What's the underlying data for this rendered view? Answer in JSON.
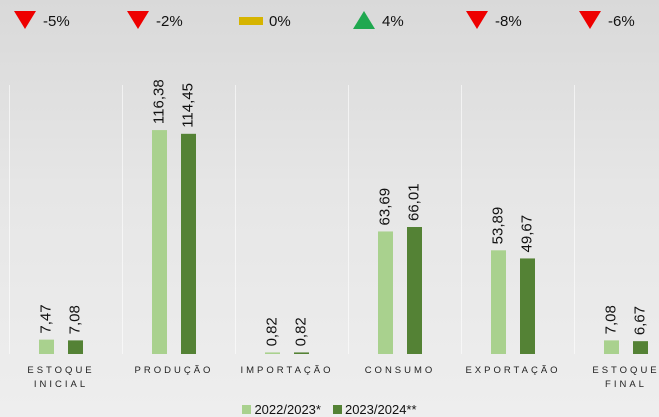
{
  "chart_data": {
    "type": "bar",
    "categories": [
      "ESTOQUE INICIAL",
      "PRODUÇÃO",
      "IMPORTAÇÃO",
      "CONSUMO",
      "EXPORTAÇÃO",
      "ESTOQUE FINAL"
    ],
    "series": [
      {
        "name": "2022/2023*",
        "color": "#a9d18e",
        "values": [
          7.47,
          116.38,
          0.82,
          63.69,
          53.89,
          7.08
        ],
        "value_labels": [
          "7,47",
          "116,38",
          "0,82",
          "63,69",
          "53,89",
          "7,08"
        ]
      },
      {
        "name": "2023/2024**",
        "color": "#548235",
        "values": [
          7.08,
          114.45,
          0.82,
          66.01,
          49.67,
          6.67
        ],
        "value_labels": [
          "7,08",
          "114,45",
          "0,82",
          "66,01",
          "49,67",
          "6,67"
        ]
      }
    ],
    "changes": {
      "values": [
        -5,
        -2,
        0,
        4,
        -8,
        -6
      ],
      "value_labels": [
        "-5%",
        "-2%",
        "0%",
        "4%",
        "-8%",
        "-6%"
      ],
      "colors": {
        "down": "#ee0000",
        "flat": "#d6b400",
        "up": "#1fa84f"
      }
    },
    "ylim": [
      0,
      184
    ],
    "legend": "bottom"
  }
}
